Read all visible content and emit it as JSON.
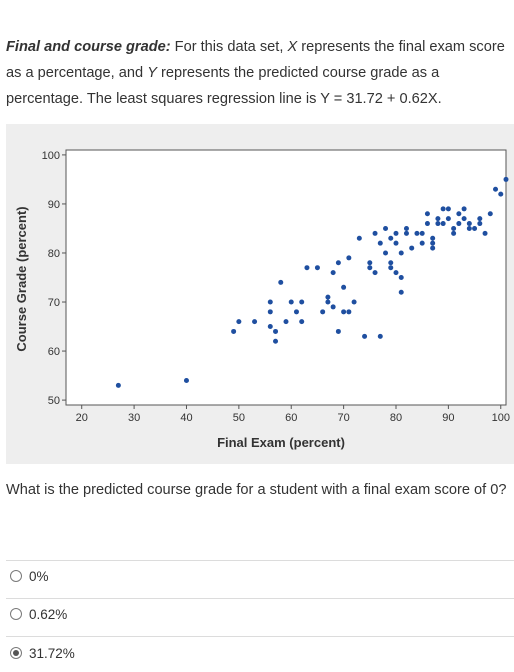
{
  "intro": {
    "title": "Final and course grade:",
    "part1": " For this data set, ",
    "x_symbol": "X",
    "part2": " represents the final exam score as a percentage, and ",
    "y_symbol": "Y",
    "part3": " represents the predicted course grade as a percentage. The least squares regression line is Y = 31.72 + 0.62X."
  },
  "question": "What is the predicted course grade for a student with a final exam score of 0?",
  "options": [
    {
      "label": "0%",
      "selected": false
    },
    {
      "label": "0.62%",
      "selected": false
    },
    {
      "label": "31.72%",
      "selected": true
    }
  ],
  "chart_data": {
    "type": "scatter",
    "xlabel": "Final Exam (percent)",
    "ylabel": "Course Grade (percent)",
    "xlim": [
      17,
      101
    ],
    "ylim": [
      49,
      101
    ],
    "xticks": [
      20,
      30,
      40,
      50,
      60,
      70,
      80,
      90,
      100
    ],
    "yticks": [
      50,
      60,
      70,
      80,
      90,
      100
    ],
    "marker_color": "#1f4fa0",
    "background": "#eeeeee",
    "points": [
      [
        27,
        53
      ],
      [
        40,
        54
      ],
      [
        49,
        64
      ],
      [
        50,
        66
      ],
      [
        53,
        66
      ],
      [
        56,
        65
      ],
      [
        56,
        70
      ],
      [
        56,
        68
      ],
      [
        57,
        64
      ],
      [
        57,
        62
      ],
      [
        58,
        74
      ],
      [
        59,
        66
      ],
      [
        60,
        70
      ],
      [
        61,
        68
      ],
      [
        62,
        70
      ],
      [
        62,
        66
      ],
      [
        63,
        77
      ],
      [
        65,
        77
      ],
      [
        66,
        68
      ],
      [
        67,
        70
      ],
      [
        67,
        71
      ],
      [
        68,
        69
      ],
      [
        68,
        76
      ],
      [
        69,
        78
      ],
      [
        69,
        64
      ],
      [
        70,
        68
      ],
      [
        70,
        73
      ],
      [
        71,
        79
      ],
      [
        71,
        68
      ],
      [
        72,
        70
      ],
      [
        73,
        83
      ],
      [
        74,
        63
      ],
      [
        75,
        77
      ],
      [
        75,
        78
      ],
      [
        76,
        76
      ],
      [
        76,
        84
      ],
      [
        77,
        82
      ],
      [
        77,
        63
      ],
      [
        78,
        80
      ],
      [
        78,
        85
      ],
      [
        79,
        78
      ],
      [
        79,
        77
      ],
      [
        79,
        83
      ],
      [
        80,
        84
      ],
      [
        80,
        76
      ],
      [
        80,
        82
      ],
      [
        81,
        75
      ],
      [
        81,
        72
      ],
      [
        81,
        80
      ],
      [
        82,
        84
      ],
      [
        82,
        85
      ],
      [
        83,
        81
      ],
      [
        84,
        84
      ],
      [
        85,
        84
      ],
      [
        85,
        82
      ],
      [
        86,
        86
      ],
      [
        86,
        88
      ],
      [
        87,
        83
      ],
      [
        87,
        82
      ],
      [
        87,
        81
      ],
      [
        88,
        87
      ],
      [
        88,
        86
      ],
      [
        89,
        86
      ],
      [
        89,
        89
      ],
      [
        90,
        87
      ],
      [
        90,
        89
      ],
      [
        91,
        85
      ],
      [
        91,
        84
      ],
      [
        92,
        86
      ],
      [
        92,
        88
      ],
      [
        93,
        87
      ],
      [
        93,
        89
      ],
      [
        94,
        85
      ],
      [
        94,
        86
      ],
      [
        95,
        85
      ],
      [
        96,
        86
      ],
      [
        96,
        87
      ],
      [
        97,
        84
      ],
      [
        98,
        88
      ],
      [
        99,
        93
      ],
      [
        100,
        92
      ],
      [
        101,
        95
      ]
    ]
  }
}
